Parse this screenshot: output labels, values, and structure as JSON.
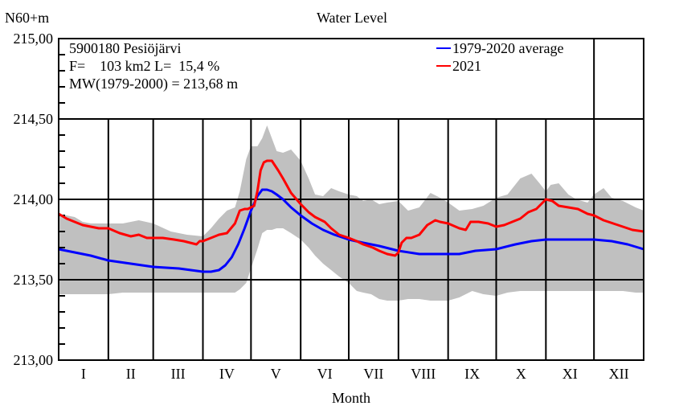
{
  "chart_data": {
    "type": "line",
    "title": "Water Level",
    "ylabel": "N60+m",
    "xlabel": "Month",
    "ylim": [
      213.0,
      215.0
    ],
    "xlim_days": [
      0,
      365
    ],
    "y_ticks": [
      "213,00",
      "213,50",
      "214,00",
      "214,50",
      "215,00"
    ],
    "y_tick_values": [
      213.0,
      213.5,
      214.0,
      214.5,
      215.0
    ],
    "y_minor_step": 0.1,
    "grid": true,
    "x_categories": [
      "I",
      "II",
      "III",
      "IV",
      "V",
      "VI",
      "VII",
      "VIII",
      "IX",
      "X",
      "XI",
      "XII"
    ],
    "month_start_days": [
      0,
      31,
      59,
      90,
      120,
      151,
      181,
      212,
      243,
      273,
      304,
      334,
      365
    ],
    "info_box": {
      "station": "5900180 Pesiöjärvi",
      "area_line": "F=    103 km2 L=  15,4 %",
      "mean_line": "MW(1979-2000) = 213,68 m"
    },
    "legend": {
      "placement": "top-right",
      "entries": [
        {
          "label": "1979-2020 average",
          "color": "#0000ff"
        },
        {
          "label": "2021",
          "color": "#ff0000"
        }
      ]
    },
    "band": {
      "name": "1979-2020 min-max range",
      "color": "#c0c0c0",
      "days": [
        0,
        5,
        10,
        15,
        20,
        31,
        40,
        50,
        59,
        70,
        80,
        90,
        95,
        100,
        105,
        110,
        113,
        117,
        120,
        124,
        127,
        130,
        133,
        136,
        140,
        145,
        151,
        156,
        160,
        165,
        170,
        175,
        181,
        186,
        190,
        195,
        200,
        205,
        212,
        218,
        225,
        232,
        240,
        243,
        250,
        258,
        265,
        273,
        280,
        288,
        295,
        300,
        304,
        307,
        312,
        318,
        323,
        330,
        334,
        340,
        345,
        352,
        360,
        365
      ],
      "upper": [
        213.91,
        213.9,
        213.89,
        213.86,
        213.85,
        213.85,
        213.85,
        213.87,
        213.85,
        213.8,
        213.78,
        213.77,
        213.82,
        213.88,
        213.93,
        213.95,
        214.05,
        214.25,
        214.33,
        214.33,
        214.38,
        214.46,
        214.38,
        214.3,
        214.29,
        214.31,
        214.24,
        214.13,
        214.03,
        214.02,
        214.07,
        214.05,
        214.03,
        214.02,
        213.99,
        214.0,
        213.97,
        213.98,
        213.99,
        213.93,
        213.95,
        214.04,
        214.0,
        213.98,
        213.93,
        213.94,
        213.96,
        214.01,
        214.03,
        214.13,
        214.16,
        214.1,
        214.05,
        214.09,
        214.1,
        214.03,
        214.0,
        213.98,
        214.03,
        214.07,
        214.01,
        213.99,
        213.95,
        213.93
      ],
      "lower": [
        213.41,
        213.41,
        213.41,
        213.41,
        213.41,
        213.41,
        213.42,
        213.42,
        213.42,
        213.42,
        213.42,
        213.42,
        213.42,
        213.42,
        213.42,
        213.42,
        213.44,
        213.48,
        213.57,
        213.69,
        213.79,
        213.81,
        213.81,
        213.82,
        213.82,
        213.79,
        213.75,
        213.7,
        213.65,
        213.6,
        213.56,
        213.52,
        213.48,
        213.43,
        213.42,
        213.41,
        213.38,
        213.37,
        213.37,
        213.38,
        213.38,
        213.37,
        213.37,
        213.37,
        213.39,
        213.43,
        213.41,
        213.4,
        213.42,
        213.43,
        213.43,
        213.43,
        213.43,
        213.43,
        213.43,
        213.43,
        213.43,
        213.43,
        213.43,
        213.43,
        213.43,
        213.43,
        213.42,
        213.42
      ]
    },
    "series": [
      {
        "name": "1979-2020 average",
        "color": "#0000ff",
        "days": [
          0,
          10,
          20,
          31,
          45,
          59,
          75,
          90,
          95,
          100,
          104,
          108,
          112,
          116,
          120,
          124,
          127,
          130,
          133,
          136,
          140,
          145,
          151,
          158,
          165,
          172,
          181,
          190,
          200,
          212,
          225,
          240,
          250,
          260,
          273,
          285,
          295,
          304,
          315,
          325,
          334,
          345,
          355,
          365
        ],
        "values": [
          213.69,
          213.67,
          213.65,
          213.62,
          213.6,
          213.58,
          213.57,
          213.55,
          213.55,
          213.56,
          213.59,
          213.64,
          213.72,
          213.82,
          213.93,
          214.02,
          214.06,
          214.06,
          214.05,
          214.03,
          214.0,
          213.95,
          213.9,
          213.85,
          213.81,
          213.78,
          213.75,
          213.73,
          213.71,
          213.68,
          213.66,
          213.66,
          213.66,
          213.68,
          213.69,
          213.72,
          213.74,
          213.75,
          213.75,
          213.75,
          213.75,
          213.74,
          213.72,
          213.69
        ]
      },
      {
        "name": "2021",
        "color": "#ff0000",
        "days": [
          0,
          5,
          10,
          15,
          20,
          25,
          31,
          38,
          45,
          50,
          55,
          59,
          65,
          72,
          78,
          82,
          86,
          88,
          90,
          95,
          100,
          105,
          110,
          113,
          116,
          118,
          120,
          122,
          124,
          126,
          128,
          130,
          133,
          137,
          140,
          145,
          151,
          156,
          160,
          166,
          170,
          175,
          181,
          186,
          190,
          196,
          200,
          205,
          210,
          212,
          214,
          217,
          220,
          225,
          230,
          235,
          238,
          243,
          250,
          254,
          257,
          262,
          268,
          273,
          278,
          283,
          288,
          293,
          298,
          301,
          304,
          308,
          312,
          318,
          324,
          330,
          334,
          340,
          346,
          352,
          358,
          365
        ],
        "values": [
          213.91,
          213.88,
          213.86,
          213.84,
          213.83,
          213.82,
          213.82,
          213.79,
          213.77,
          213.78,
          213.76,
          213.76,
          213.76,
          213.75,
          213.74,
          213.73,
          213.72,
          213.74,
          213.74,
          213.76,
          213.78,
          213.79,
          213.85,
          213.93,
          213.94,
          213.94,
          213.95,
          213.96,
          214.05,
          214.18,
          214.23,
          214.24,
          214.24,
          214.18,
          214.13,
          214.04,
          213.97,
          213.92,
          213.89,
          213.86,
          213.82,
          213.78,
          213.76,
          213.74,
          213.72,
          213.7,
          213.68,
          213.66,
          213.65,
          213.67,
          213.73,
          213.76,
          213.76,
          213.78,
          213.84,
          213.87,
          213.86,
          213.85,
          213.82,
          213.81,
          213.86,
          213.86,
          213.85,
          213.83,
          213.84,
          213.86,
          213.88,
          213.92,
          213.94,
          213.97,
          214.0,
          213.99,
          213.96,
          213.95,
          213.94,
          213.91,
          213.9,
          213.87,
          213.85,
          213.83,
          213.81,
          213.8
        ]
      }
    ]
  }
}
